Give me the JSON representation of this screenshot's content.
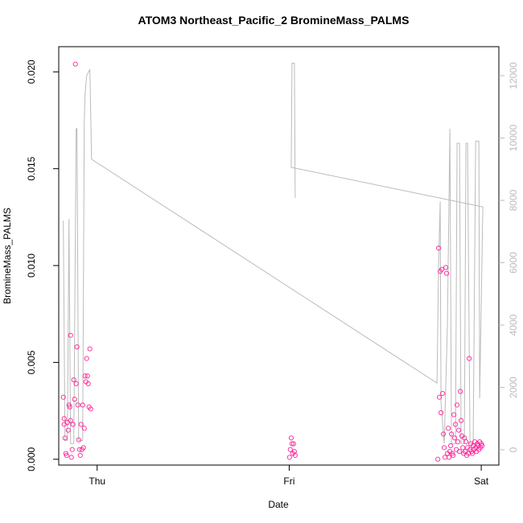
{
  "chart_data": {
    "type": "scatter",
    "title": "ATOM3 Northeast_Pacific_2 BromineMass_PALMS",
    "xlabel": "Date",
    "ylabel": "BromineMass_PALMS",
    "xlim": [
      -4.8,
      50.2
    ],
    "xticks": [
      {
        "value": 0,
        "label": "Thu"
      },
      {
        "value": 24,
        "label": "Fri"
      },
      {
        "value": 48,
        "label": "Sat"
      }
    ],
    "ylim": [
      -0.0003,
      0.0213
    ],
    "yticks": [
      {
        "value": 0,
        "label": "0.000"
      },
      {
        "value": 0.005,
        "label": "0.005"
      },
      {
        "value": 0.01,
        "label": "0.010"
      },
      {
        "value": 0.015,
        "label": "0.015"
      },
      {
        "value": 0.02,
        "label": "0.020"
      }
    ],
    "y2lim": [
      -490,
      12930
    ],
    "y2ticks": [
      0,
      2000,
      4000,
      6000,
      8000,
      10000,
      12000
    ],
    "y2color": "#bbbbbb",
    "series": [
      {
        "color": "#ff1493",
        "x": [
          -4.23,
          -4.12,
          -4.12,
          -4.02,
          -3.92,
          -3.82,
          -3.72,
          -3.62,
          -3.52,
          -3.42,
          -3.32,
          -3.32,
          -3.22,
          -3.12,
          -3.02,
          -2.92,
          -2.82,
          -2.72,
          -2.62,
          -2.52,
          -2.41,
          -2.31,
          -2.21,
          -2.11,
          -2.01,
          -1.91,
          -1.81,
          -1.71,
          -1.61,
          -1.51,
          -1.41,
          -1.31,
          -1.21,
          -1.11,
          -1.01,
          -0.91,
          -0.8,
          24.04,
          24.14,
          24.25,
          24.35,
          24.45,
          24.55,
          24.65,
          24.75,
          42.57,
          42.67,
          42.77,
          42.87,
          42.97,
          43.07,
          43.17,
          43.27,
          43.37,
          43.47,
          43.57,
          43.67,
          43.77,
          43.87,
          43.97,
          44.08,
          44.18,
          44.28,
          44.38,
          44.48,
          44.58,
          44.68,
          44.78,
          44.88,
          44.98,
          45.08,
          45.18,
          45.28,
          45.38,
          45.48,
          45.58,
          45.69,
          45.79,
          45.89,
          45.99,
          46.09,
          46.19,
          46.29,
          46.39,
          46.49,
          46.59,
          46.69,
          46.79,
          46.89,
          46.99,
          47.09,
          47.2,
          47.3,
          47.4,
          47.5,
          47.6,
          47.7,
          47.8,
          47.9,
          48.0,
          48.1
        ],
        "values": [
          0.0032,
          0.0021,
          0.0018,
          0.0011,
          0.0003,
          0.0002,
          0.0019,
          0.0015,
          0.0028,
          0.0027,
          0.0064,
          0.002,
          0.0001,
          0.0005,
          0.0018,
          0.0041,
          0.0031,
          0.0204,
          0.0039,
          0.0058,
          0.0028,
          0.001,
          0.0005,
          0.0002,
          0.0018,
          0.0005,
          0.0028,
          0.0006,
          0.0016,
          0.0043,
          0.004,
          0.0052,
          0.0043,
          0.0039,
          0.0027,
          0.0057,
          0.0026,
          0.0001,
          0.0005,
          0.0011,
          0.0008,
          0.0003,
          0.0008,
          0.0004,
          0.0002,
          0.0,
          0.0109,
          0.0032,
          0.0097,
          0.0024,
          0.0098,
          0.0034,
          0.0013,
          0.0006,
          0.0001,
          0.0099,
          0.0096,
          0.0003,
          0.0016,
          0.0001,
          0.0004,
          0.0007,
          0.0013,
          0.0003,
          0.0002,
          0.0023,
          0.0011,
          0.0018,
          0.0005,
          0.0028,
          0.0009,
          0.0015,
          0.0004,
          0.0035,
          0.002,
          0.0012,
          0.0006,
          0.0003,
          0.0011,
          0.0004,
          0.0009,
          0.0002,
          0.0006,
          0.0003,
          0.0052,
          0.0005,
          0.0008,
          0.0004,
          0.0003,
          0.0007,
          0.0005,
          0.0009,
          0.0006,
          0.0004,
          0.0008,
          0.0007,
          0.0005,
          0.0009,
          0.0006,
          0.0008,
          0.0007
        ]
      },
      {
        "color": "#bbbbbb",
        "axis": "y2",
        "x": [
          -4.23,
          -4.02,
          -3.72,
          -3.52,
          -3.32,
          -2.92,
          -2.62,
          -2.52,
          -2.31,
          -1.81,
          -1.61,
          -1.51,
          -1.31,
          -0.91,
          -0.7,
          42.47,
          42.67,
          42.87,
          42.97,
          43.37,
          43.77,
          44.08,
          44.28,
          44.78,
          44.98,
          45.28,
          45.48,
          45.89,
          46.09,
          46.29,
          46.59,
          46.99,
          47.3,
          47.7,
          47.8,
          48.2,
          24.25,
          24.35,
          24.65,
          24.75
        ],
        "values": [
          7350,
          300,
          300,
          7400,
          200,
          200,
          10300,
          10300,
          300,
          300,
          10500,
          11400,
          12000,
          12200,
          9320,
          2140,
          6000,
          7970,
          1500,
          200,
          4000,
          10300,
          200,
          200,
          9830,
          9830,
          200,
          200,
          9830,
          9830,
          200,
          200,
          9900,
          9900,
          1650,
          7790,
          9060,
          12400,
          12400,
          8080
        ]
      }
    ]
  }
}
